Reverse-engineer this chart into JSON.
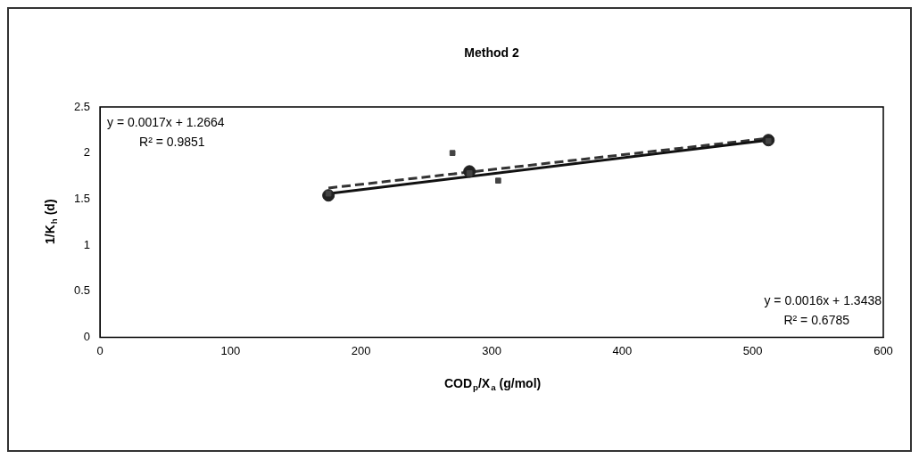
{
  "chart_data": {
    "type": "scatter",
    "title": "Method 2",
    "xlabel": "COD$_{p}$/X$_{a}$ (g/mol)",
    "ylabel": "1/K$_{h}$ (d)",
    "xlim": [
      0,
      600
    ],
    "xticks": [
      0,
      100,
      200,
      300,
      400,
      500,
      600
    ],
    "ylim": [
      0,
      2.5
    ],
    "yticks": [
      0,
      0.5,
      1,
      1.5,
      2,
      2.5
    ],
    "grid": false,
    "legend": false,
    "series": [
      {
        "color": "#222222",
        "marker": "circle",
        "x": [
          175,
          283,
          512
        ],
        "values": [
          1.54,
          1.8,
          2.14
        ]
      },
      {
        "color": "#444444",
        "marker": "square",
        "x": [
          175,
          270,
          283,
          305,
          512
        ],
        "values": [
          1.56,
          2.0,
          1.78,
          1.7,
          2.13
        ]
      },
      {
        "type": "line",
        "color": "#111111",
        "line_style": "solid",
        "x": [
          175,
          512
        ],
        "values": [
          1.56,
          2.14
        ]
      },
      {
        "type": "line",
        "color": "#333333",
        "line_style": "dashed",
        "x": [
          175,
          512
        ],
        "values": [
          1.62,
          2.16
        ]
      }
    ],
    "annotations": [
      "y = 0.0017x + 1.2664",
      "R² = 0.9851",
      "y = 0.0016x + 1.3438",
      "R² = 0.6785"
    ]
  }
}
